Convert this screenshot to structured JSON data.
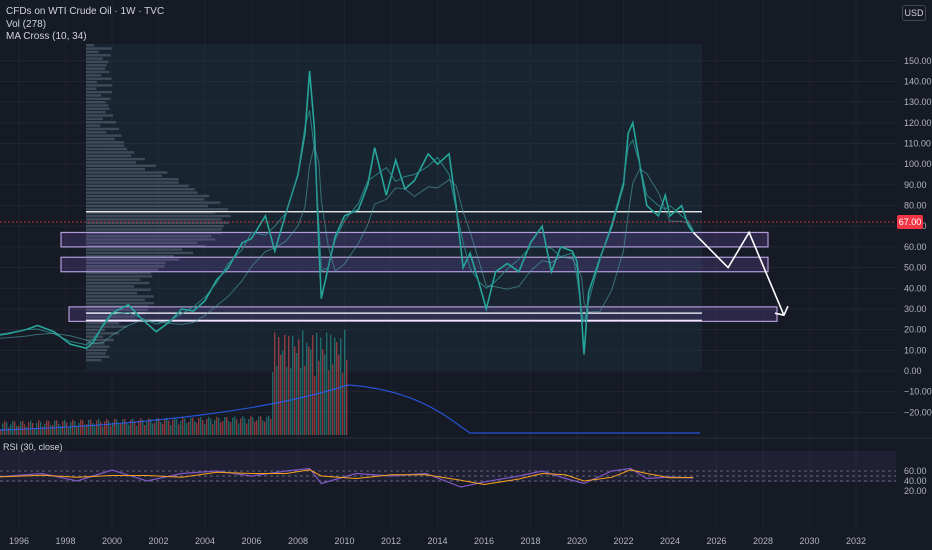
{
  "header": {
    "title": "CFDs on WTI Crude Oil · 1W · TVC",
    "vol_label": "Vol (278)",
    "ma_label": "MA Cross (10, 34)",
    "currency_button": "USD"
  },
  "rsi": {
    "label": "RSI (30, close)",
    "ticks": [
      "60.00",
      "40.00",
      "20.00"
    ]
  },
  "price_tag": "67.00",
  "colors": {
    "background": "#161a25",
    "up": "#26a69a",
    "down": "#ef5350",
    "zone": "#7e57c2",
    "rsi_line": "#7e57c2",
    "rsi_ma": "#f7a21b",
    "price_tag": "#f23645"
  },
  "chart_data": [
    {
      "type": "line",
      "title": "CFDs on WTI Crude Oil · 1W · TVC",
      "y_ticks": [
        "150.00",
        "140.00",
        "130.00",
        "120.00",
        "110.00",
        "100.00",
        "90.00",
        "80.00",
        "70.00",
        "60.00",
        "50.00",
        "40.00",
        "30.00",
        "20.00",
        "10.00",
        "0.00",
        "−10.00",
        "−20.00"
      ],
      "x_ticks": [
        "1996",
        "1998",
        "2000",
        "2002",
        "2004",
        "2006",
        "2008",
        "2010",
        "2012",
        "2014",
        "2016",
        "2018",
        "2020",
        "2022",
        "2024",
        "2026",
        "2028",
        "2030",
        "2032"
      ],
      "ylim": [
        -25,
        152
      ],
      "xlim": [
        1994.9,
        2033.5
      ],
      "series": [
        {
          "x": [
            1994.9,
            1995.5,
            1996.3,
            1996.8,
            1997.5,
            1998.2,
            1998.9,
            1999.2,
            1999.6,
            2000.0,
            2000.7,
            2001.3,
            2001.9,
            2002.5,
            2003.0,
            2003.5,
            2004.0,
            2004.5,
            2005.0,
            2005.6,
            2006.0,
            2006.6,
            2007.0,
            2007.5,
            2008.0,
            2008.3,
            2008.5,
            2008.7,
            2008.9,
            2009.0,
            2009.3,
            2009.6,
            2010.0,
            2010.6,
            2011.0,
            2011.3,
            2011.8,
            2012.2,
            2012.6,
            2013.0,
            2013.6,
            2014.0,
            2014.5,
            2014.8,
            2015.1,
            2015.4,
            2015.8,
            2016.1,
            2016.5,
            2017.0,
            2017.5,
            2018.0,
            2018.5,
            2018.9,
            2019.3,
            2019.8,
            2020.0,
            2020.2,
            2020.3,
            2020.5,
            2021.0,
            2021.5,
            2022.0,
            2022.2,
            2022.4,
            2022.7,
            2023.0,
            2023.5,
            2023.8,
            2024.0,
            2024.5,
            2024.8,
            2025.0
          ],
          "values": [
            17,
            18,
            20,
            22,
            19,
            13,
            11,
            14,
            22,
            28,
            32,
            25,
            19,
            24,
            30,
            29,
            34,
            44,
            50,
            62,
            64,
            75,
            58,
            77,
            95,
            115,
            145,
            118,
            60,
            35,
            50,
            65,
            75,
            78,
            90,
            108,
            85,
            102,
            88,
            92,
            105,
            100,
            105,
            80,
            50,
            57,
            42,
            30,
            48,
            52,
            48,
            62,
            70,
            48,
            60,
            58,
            53,
            25,
            8,
            38,
            55,
            70,
            90,
            115,
            120,
            100,
            80,
            75,
            85,
            75,
            80,
            70,
            67
          ]
        }
      ],
      "horizontal_levels": [
        77,
        28,
        24.5
      ],
      "support_zones": [
        [
          60,
          67
        ],
        [
          48,
          55
        ],
        [
          24,
          31
        ]
      ],
      "projection": {
        "x": [
          2025.0,
          2026.5,
          2027.4,
          2028.9
        ],
        "values": [
          67,
          50,
          67,
          27
        ]
      }
    },
    {
      "type": "line",
      "title": "RSI (30, close)",
      "ylim": [
        20,
        70
      ],
      "reference_levels": [
        60,
        50,
        40
      ],
      "series": [
        {
          "name": "RSI (30, close)",
          "x": [
            1995,
            1997,
            1998.5,
            2000,
            2001.5,
            2003,
            2004.5,
            2006,
            2007.5,
            2008.5,
            2009,
            2010.5,
            2012,
            2013.5,
            2015,
            2016,
            2017.5,
            2018.5,
            2019.5,
            2020.3,
            2021.5,
            2022.3,
            2023,
            2024,
            2025
          ],
          "values": [
            48,
            55,
            40,
            62,
            40,
            55,
            60,
            50,
            60,
            65,
            35,
            55,
            50,
            55,
            28,
            38,
            50,
            60,
            45,
            35,
            60,
            65,
            45,
            48,
            46
          ]
        }
      ]
    }
  ]
}
